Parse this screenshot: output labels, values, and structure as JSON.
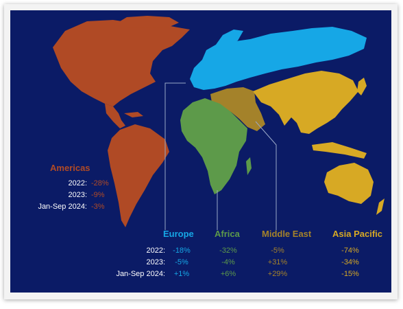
{
  "colors": {
    "background": "#0b1b66",
    "americas": "#b04a25",
    "europe": "#16a7e6",
    "africa": "#5d9a4a",
    "middle_east": "#a4822a",
    "asia_pacific": "#d7a924"
  },
  "americas": {
    "label": "Americas",
    "rows": [
      {
        "period": "2022:",
        "value": "-28%"
      },
      {
        "period": "2023:",
        "value": "-9%"
      },
      {
        "period": "Jan-Sep 2024:",
        "value": "-3%"
      }
    ]
  },
  "periods": [
    "2022:",
    "2023:",
    "Jan-Sep 2024:"
  ],
  "regions": [
    {
      "label": "Europe",
      "values": [
        "-18%",
        "-5%",
        "+1%"
      ]
    },
    {
      "label": "Africa",
      "values": [
        "-32%",
        "-4%",
        "+6%"
      ]
    },
    {
      "label": "Middle East",
      "values": [
        "-5%",
        "+31%",
        "+29%"
      ]
    },
    {
      "label": "Asia Pacific",
      "values": [
        "-74%",
        "-34%",
        "-15%"
      ]
    }
  ]
}
